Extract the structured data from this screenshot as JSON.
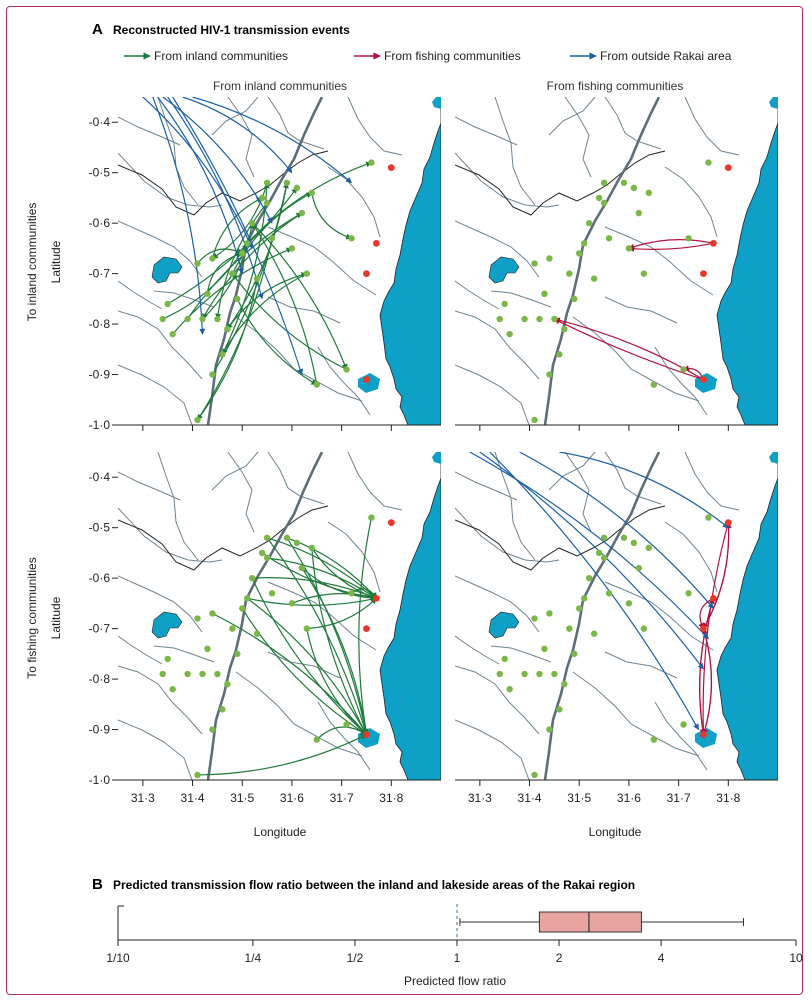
{
  "panel_a": {
    "letter": "A",
    "title": "Reconstructed HIV-1 transmission events",
    "legend": [
      {
        "label": "From inland communities",
        "color": "#1f7a3a"
      },
      {
        "label": "From fishing communities",
        "color": "#b0123f"
      },
      {
        "label": "From outside Rakai area",
        "color": "#1a5fa8"
      }
    ],
    "column_titles": [
      "From inland communities",
      "From fishing communities"
    ],
    "row_titles": [
      "To inland communities",
      "To fishing communities"
    ],
    "ylabel": "Latitude",
    "xlabel": "Longitude",
    "y_ticks": [
      "-0·4",
      "-0·5",
      "-0·6",
      "-0·7",
      "-0·8",
      "-0·9",
      "-1·0"
    ],
    "x_ticks": [
      "31·3",
      "31·4",
      "31·5",
      "31·6",
      "31·7",
      "31·8"
    ],
    "colors": {
      "lake": "#0fa0c8",
      "inland_dot": "#7ab648",
      "fishing_dot": "#e8382e"
    }
  },
  "panel_b": {
    "letter": "B",
    "title": "Predicted transmission flow ratio between the inland and lakeside areas of the Rakai region",
    "xlabel": "Predicted flow ratio",
    "x_ticks": [
      "1/10",
      "1/4",
      "1/2",
      "1",
      "2",
      "4",
      "10"
    ],
    "box_color": "#e8a5a0"
  },
  "chart_data": [
    {
      "type": "scatter",
      "title": "Reconstructed HIV-1 transmission events",
      "xlabel": "Longitude",
      "ylabel": "Latitude",
      "xlim": [
        31.25,
        31.9
      ],
      "ylim": [
        -1.0,
        -0.35
      ],
      "x_ticks": [
        31.3,
        31.4,
        31.5,
        31.6,
        31.7,
        31.8
      ],
      "y_ticks": [
        -0.4,
        -0.5,
        -0.6,
        -0.7,
        -0.8,
        -0.9,
        -1.0
      ],
      "legend_position": "top",
      "inland_communities": [
        [
          31.41,
          -0.68
        ],
        [
          31.44,
          -0.67
        ],
        [
          31.35,
          -0.76
        ],
        [
          31.34,
          -0.79
        ],
        [
          31.36,
          -0.82
        ],
        [
          31.39,
          -0.79
        ],
        [
          31.42,
          -0.79
        ],
        [
          31.45,
          -0.79
        ],
        [
          31.47,
          -0.81
        ],
        [
          31.46,
          -0.86
        ],
        [
          31.44,
          -0.9
        ],
        [
          31.48,
          -0.7
        ],
        [
          31.5,
          -0.66
        ],
        [
          31.51,
          -0.64
        ],
        [
          31.52,
          -0.6
        ],
        [
          31.54,
          -0.55
        ],
        [
          31.55,
          -0.52
        ],
        [
          31.59,
          -0.52
        ],
        [
          31.61,
          -0.53
        ],
        [
          31.64,
          -0.54
        ],
        [
          31.62,
          -0.58
        ],
        [
          31.6,
          -0.65
        ],
        [
          31.63,
          -0.7
        ],
        [
          31.56,
          -0.63
        ],
        [
          31.55,
          -0.56
        ],
        [
          31.53,
          -0.71
        ],
        [
          31.49,
          -0.75
        ],
        [
          31.43,
          -0.74
        ],
        [
          31.41,
          -0.99
        ],
        [
          31.65,
          -0.92
        ],
        [
          31.71,
          -0.89
        ],
        [
          31.72,
          -0.63
        ],
        [
          31.76,
          -0.48
        ]
      ],
      "fishing_communities": [
        [
          31.8,
          -0.49
        ],
        [
          31.77,
          -0.64
        ],
        [
          31.75,
          -0.7
        ],
        [
          31.75,
          -0.91
        ]
      ],
      "panels": [
        {
          "row": "To inland communities",
          "column": "From inland communities",
          "arrows": [
            "From inland communities",
            "From outside Rakai area"
          ]
        },
        {
          "row": "To inland communities",
          "column": "From fishing communities",
          "arrows": [
            "From fishing communities"
          ]
        },
        {
          "row": "To fishing communities",
          "column": "From inland communities",
          "arrows": [
            "From inland communities"
          ]
        },
        {
          "row": "To fishing communities",
          "column": "From fishing communities",
          "arrows": [
            "From fishing communities",
            "From outside Rakai area"
          ]
        }
      ]
    },
    {
      "type": "box",
      "title": "Predicted transmission flow ratio between the inland and lakeside areas of the Rakai region",
      "xlabel": "Predicted flow ratio",
      "x_scale": "log",
      "xlim": [
        0.1,
        10
      ],
      "reference_line": 1,
      "whisker_low": 1.02,
      "q1": 1.75,
      "median": 2.45,
      "q3": 3.5,
      "whisker_high": 7.0
    }
  ]
}
